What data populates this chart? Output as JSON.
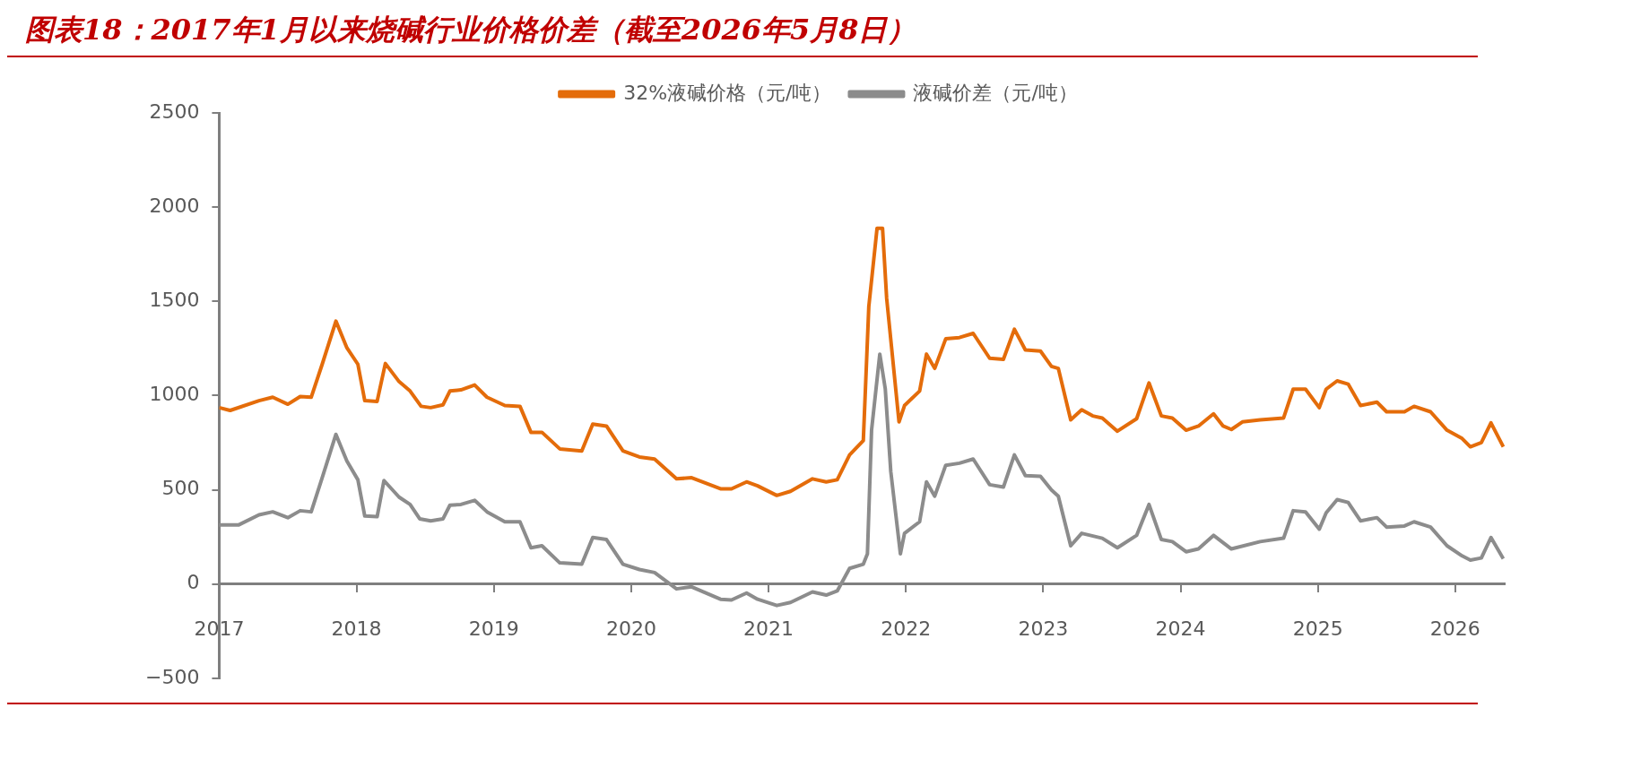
{
  "chart_data": {
    "type": "line",
    "title": "图表18：2017年1月以来烧碱行业价格价差（截至2026年5月8日）",
    "legend": "top",
    "grid": false,
    "marker": "none",
    "line_style": "solid",
    "xlim": [
      2017,
      2026.36
    ],
    "xticks": [
      2017,
      2018,
      2019,
      2020,
      2021,
      2022,
      2023,
      2024,
      2025,
      2026
    ],
    "ylim": [
      -500,
      2500
    ],
    "yticks": [
      -500,
      0,
      500,
      1000,
      1500,
      2000,
      2500
    ],
    "series": [
      {
        "name": "32%液碱价格（元/吨）",
        "color": "#e46c0a",
        "x": [
          2017.0,
          2017.08,
          2017.29,
          2017.39,
          2017.5,
          2017.59,
          2017.67,
          2017.75,
          2017.85,
          2017.93,
          2018.01,
          2018.06,
          2018.15,
          2018.21,
          2018.31,
          2018.39,
          2018.47,
          2018.54,
          2018.63,
          2018.68,
          2018.76,
          2018.86,
          2018.95,
          2019.08,
          2019.19,
          2019.27,
          2019.35,
          2019.48,
          2019.64,
          2019.72,
          2019.82,
          2019.94,
          2020.06,
          2020.17,
          2020.33,
          2020.44,
          2020.65,
          2020.73,
          2020.84,
          2020.92,
          2021.06,
          2021.16,
          2021.32,
          2021.42,
          2021.5,
          2021.59,
          2021.69,
          2021.73,
          2021.79,
          2021.83,
          2021.86,
          2021.95,
          2021.99,
          2022.1,
          2022.15,
          2022.21,
          2022.29,
          2022.39,
          2022.49,
          2022.61,
          2022.71,
          2022.79,
          2022.87,
          2022.98,
          2023.06,
          2023.11,
          2023.2,
          2023.28,
          2023.36,
          2023.43,
          2023.54,
          2023.68,
          2023.77,
          2023.86,
          2023.94,
          2024.04,
          2024.13,
          2024.24,
          2024.31,
          2024.37,
          2024.45,
          2024.58,
          2024.75,
          2024.82,
          2024.91,
          2025.01,
          2025.06,
          2025.14,
          2025.22,
          2025.31,
          2025.43,
          2025.5,
          2025.63,
          2025.7,
          2025.82,
          2025.94,
          2026.05,
          2026.11,
          2026.19,
          2026.26,
          2026.35
        ],
        "values": [
          936,
          921,
          973,
          991,
          954,
          995,
          991,
          1166,
          1395,
          1253,
          1166,
          973,
          969,
          1170,
          1074,
          1024,
          943,
          936,
          951,
          1024,
          1030,
          1056,
          991,
          947,
          943,
          805,
          805,
          717,
          706,
          849,
          838,
          706,
          674,
          663,
          558,
          564,
          505,
          505,
          542,
          521,
          470,
          492,
          558,
          542,
          553,
          685,
          761,
          1472,
          1888,
          1888,
          1516,
          860,
          947,
          1024,
          1220,
          1144,
          1301,
          1308,
          1330,
          1198,
          1192,
          1352,
          1242,
          1236,
          1155,
          1144,
          871,
          925,
          892,
          881,
          811,
          877,
          1067,
          892,
          881,
          816,
          838,
          903,
          838,
          820,
          860,
          871,
          881,
          1034,
          1034,
          936,
          1034,
          1078,
          1061,
          947,
          965,
          914,
          914,
          943,
          914,
          816,
          772,
          728,
          750,
          855,
          728
        ]
      },
      {
        "name": "液碱价差（元/吨）",
        "color": "#8c8c8c",
        "x": [
          2017.0,
          2017.14,
          2017.29,
          2017.39,
          2017.5,
          2017.59,
          2017.67,
          2017.75,
          2017.85,
          2017.93,
          2018.01,
          2018.06,
          2018.15,
          2018.2,
          2018.31,
          2018.39,
          2018.46,
          2018.54,
          2018.63,
          2018.68,
          2018.76,
          2018.86,
          2018.95,
          2019.08,
          2019.19,
          2019.27,
          2019.35,
          2019.48,
          2019.64,
          2019.72,
          2019.82,
          2019.94,
          2020.06,
          2020.17,
          2020.33,
          2020.44,
          2020.65,
          2020.73,
          2020.84,
          2020.92,
          2021.06,
          2021.16,
          2021.32,
          2021.42,
          2021.5,
          2021.59,
          2021.69,
          2021.72,
          2021.75,
          2021.81,
          2021.85,
          2021.89,
          2021.96,
          2021.99,
          2022.1,
          2022.15,
          2022.21,
          2022.29,
          2022.39,
          2022.49,
          2022.61,
          2022.71,
          2022.79,
          2022.87,
          2022.98,
          2023.06,
          2023.11,
          2023.2,
          2023.28,
          2023.43,
          2023.54,
          2023.68,
          2023.77,
          2023.86,
          2023.94,
          2024.04,
          2024.13,
          2024.24,
          2024.37,
          2024.58,
          2024.75,
          2024.82,
          2024.91,
          2025.01,
          2025.06,
          2025.14,
          2025.22,
          2025.31,
          2025.43,
          2025.5,
          2025.63,
          2025.7,
          2025.82,
          2025.94,
          2026.05,
          2026.11,
          2026.19,
          2026.26,
          2026.35
        ],
        "values": [
          313,
          313,
          367,
          383,
          352,
          389,
          383,
          564,
          794,
          652,
          553,
          361,
          357,
          549,
          461,
          422,
          346,
          335,
          346,
          418,
          422,
          444,
          383,
          330,
          330,
          192,
          203,
          112,
          105,
          247,
          236,
          105,
          77,
          61,
          -26,
          -15,
          -81,
          -85,
          -48,
          -81,
          -114,
          -98,
          -42,
          -59,
          -37,
          83,
          105,
          160,
          816,
          1220,
          1035,
          597,
          160,
          269,
          330,
          542,
          466,
          630,
          641,
          663,
          527,
          514,
          685,
          575,
          571,
          499,
          466,
          203,
          269,
          243,
          192,
          258,
          422,
          236,
          225,
          171,
          186,
          258,
          186,
          225,
          243,
          389,
          383,
          291,
          378,
          448,
          433,
          335,
          352,
          302,
          308,
          330,
          302,
          203,
          149,
          127,
          138,
          247,
          134
        ]
      }
    ]
  }
}
